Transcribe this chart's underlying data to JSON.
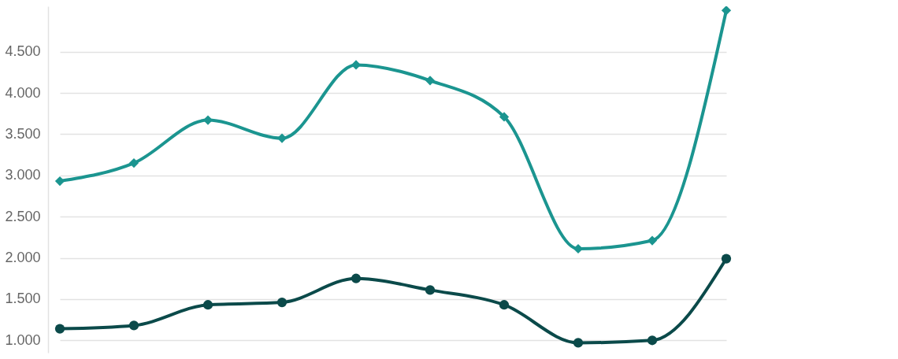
{
  "chart_data": {
    "type": "line",
    "categories": [
      null,
      null,
      null,
      null,
      null,
      null,
      null,
      null,
      null,
      null
    ],
    "series": [
      {
        "color": "#1b9590",
        "marker": "diamond",
        "values": [
          2930,
          3150,
          3670,
          3450,
          4340,
          4150,
          3710,
          2110,
          2210,
          5000
        ]
      },
      {
        "color": "#0b4a4a",
        "marker": "circle",
        "values": [
          1140,
          1180,
          1430,
          1460,
          1750,
          1610,
          1430,
          970,
          1000,
          1990
        ]
      }
    ],
    "ylim": [
      850,
      5050
    ],
    "yticks": [
      {
        "value": 1000,
        "label": "1.000"
      },
      {
        "value": 1500,
        "label": "1.500"
      },
      {
        "value": 2000,
        "label": "2.000"
      },
      {
        "value": 2500,
        "label": "2.500"
      },
      {
        "value": 3000,
        "label": "3.000"
      },
      {
        "value": 3500,
        "label": "3.500"
      },
      {
        "value": 4000,
        "label": "4.000"
      },
      {
        "value": 4500,
        "label": "4.500"
      }
    ],
    "grid": "y",
    "tick_labels": "y",
    "line_style": "solid"
  }
}
